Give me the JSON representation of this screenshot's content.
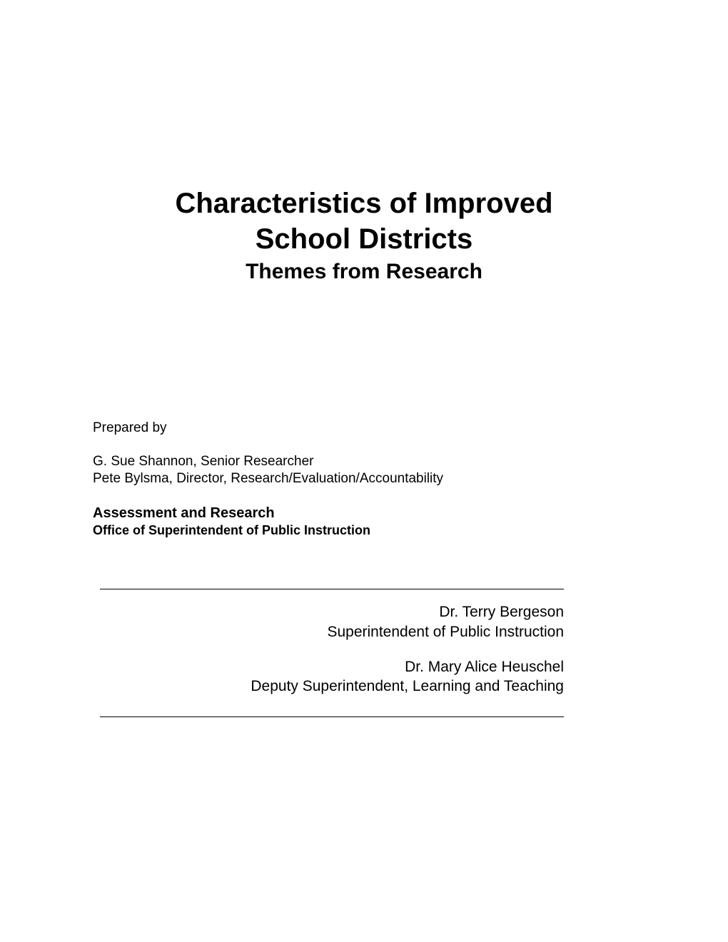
{
  "title": {
    "line1": "Characteristics of Improved",
    "line2": "School Districts",
    "subtitle": "Themes from Research"
  },
  "prepared": {
    "label": "Prepared by",
    "authors": [
      "G. Sue Shannon, Senior Researcher",
      "Pete Bylsma, Director, Research/Evaluation/Accountability"
    ],
    "dept": "Assessment and Research",
    "office": "Office of Superintendent of Public Instruction"
  },
  "officials": [
    {
      "name": "Dr. Terry Bergeson",
      "role": "Superintendent of Public Instruction"
    },
    {
      "name": "Dr. Mary Alice Heuschel",
      "role": "Deputy Superintendent, Learning and Teaching"
    }
  ]
}
